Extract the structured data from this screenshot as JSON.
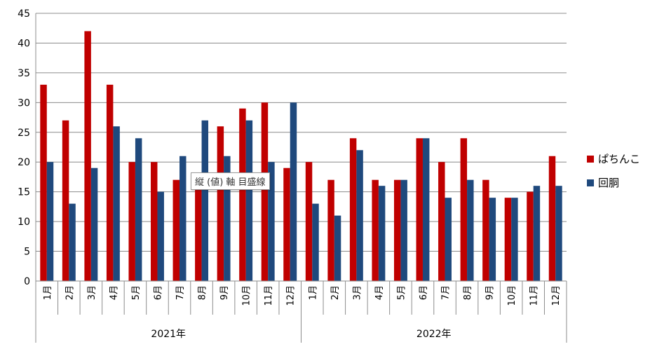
{
  "chart_data": {
    "type": "bar",
    "ylim": [
      0,
      45
    ],
    "yticks": [
      0,
      5,
      10,
      15,
      20,
      25,
      30,
      35,
      40,
      45
    ],
    "grid": true,
    "legend_position": "right",
    "groups": [
      {
        "label": "2021年",
        "categories": [
          "1月",
          "2月",
          "3月",
          "4月",
          "5月",
          "6月",
          "7月",
          "8月",
          "9月",
          "10月",
          "11月",
          "12月"
        ]
      },
      {
        "label": "2022年",
        "categories": [
          "1月",
          "2月",
          "3月",
          "4月",
          "5月",
          "6月",
          "7月",
          "8月",
          "9月",
          "10月",
          "11月",
          "12月"
        ]
      }
    ],
    "series": [
      {
        "name": "ぱちんこ",
        "color": "#c00000",
        "values": [
          33,
          27,
          42,
          33,
          20,
          20,
          17,
          16,
          26,
          29,
          30,
          19,
          20,
          17,
          24,
          17,
          17,
          24,
          20,
          24,
          17,
          14,
          15,
          21
        ]
      },
      {
        "name": "回胴",
        "color": "#1f497d",
        "values": [
          20,
          13,
          19,
          26,
          24,
          15,
          21,
          27,
          21,
          27,
          20,
          30,
          13,
          11,
          22,
          16,
          17,
          24,
          14,
          17,
          14,
          14,
          16,
          16
        ]
      }
    ]
  },
  "tooltip": {
    "text": "縦 (値) 軸 目盛線"
  }
}
